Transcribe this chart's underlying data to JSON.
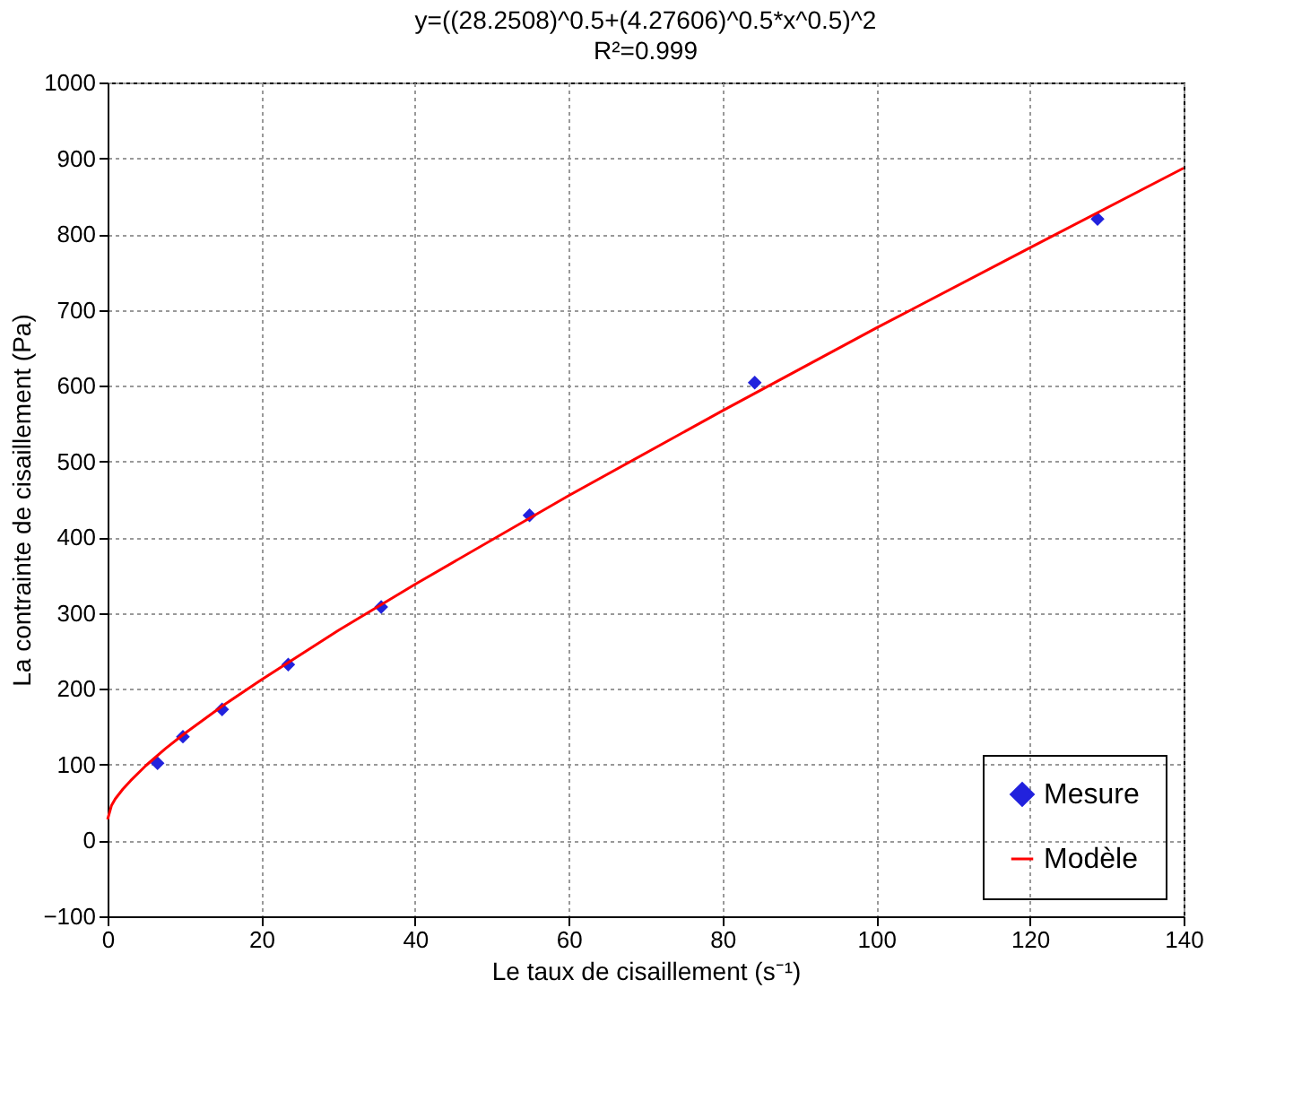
{
  "chart_data": {
    "type": "scatter",
    "title": "y=((28.2508)^0.5+(4.27606)^0.5*x^0.5)^2",
    "subtitle": "R²=0.999",
    "xlabel": "Le taux de cisaillement (s⁻¹)",
    "ylabel": "La contrainte de cisaillement (Pa)",
    "xlim": [
      0,
      140
    ],
    "xticks": [
      0,
      20,
      40,
      60,
      80,
      100,
      120,
      140
    ],
    "ylim": [
      -100,
      1000
    ],
    "yticks": [
      -100,
      0,
      100,
      200,
      300,
      400,
      500,
      600,
      700,
      800,
      900,
      1000
    ],
    "grid": true,
    "legend": "bottom right",
    "series": [
      {
        "name": "Mesure",
        "type": "scatter",
        "marker": "diamond",
        "color": "#2222dd",
        "x": [
          6.5,
          9.8,
          14.9,
          23.5,
          35.6,
          54.9,
          84.2,
          128.8
        ],
        "values": [
          102,
          137,
          173,
          232,
          308,
          429,
          604,
          820
        ]
      },
      {
        "name": "Modèle",
        "type": "line",
        "marker": "none",
        "line_style": "solid",
        "color": "#ff0000",
        "x": [
          0,
          0.5,
          1,
          2,
          3,
          5,
          7.5,
          10,
          15,
          20,
          30,
          40,
          60,
          80,
          100,
          120,
          140
        ],
        "values": [
          28,
          46,
          55,
          68,
          79,
          99,
          121,
          141,
          178,
          212,
          277,
          338,
          455,
          567,
          676,
          782,
          887
        ]
      }
    ]
  }
}
